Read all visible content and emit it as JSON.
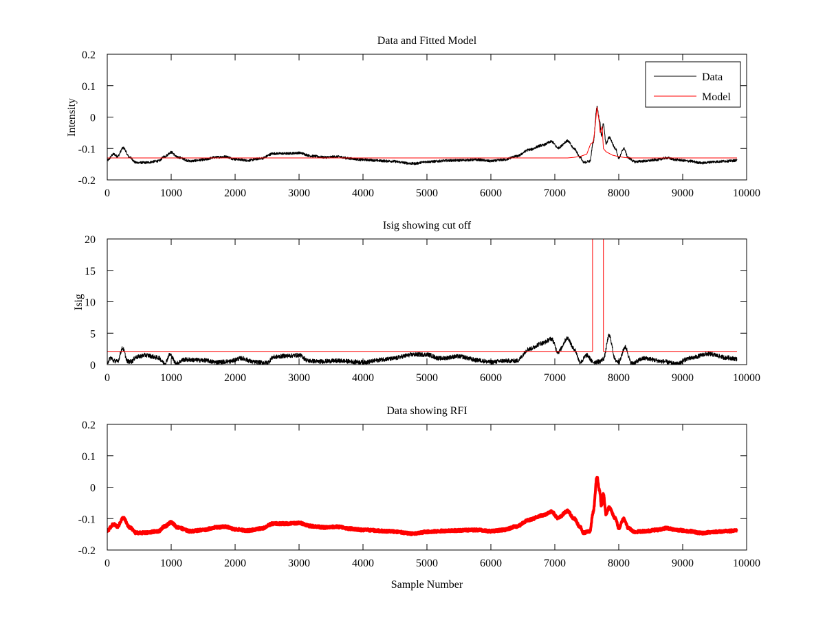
{
  "chart_data": [
    {
      "type": "line",
      "title": "Data and Fitted Model",
      "xlabel": "",
      "ylabel": "Intensity",
      "xlim": [
        0,
        10000
      ],
      "ylim": [
        -0.2,
        0.2
      ],
      "xticks": [
        0,
        1000,
        2000,
        3000,
        4000,
        5000,
        6000,
        7000,
        8000,
        9000,
        10000
      ],
      "xtick_labels": [
        "0",
        "1000",
        "2000",
        "3000",
        "4000",
        "5000",
        "6000",
        "7000",
        "8000",
        "9000",
        "10000"
      ],
      "yticks": [
        -0.2,
        -0.1,
        0,
        0.1,
        0.2
      ],
      "ytick_labels": [
        "-0.2",
        "-0.1",
        "0",
        "0.1",
        "0.2"
      ],
      "grid": false,
      "legend": {
        "placement": "top-right",
        "entries": [
          "Data",
          "Model"
        ]
      },
      "series": [
        {
          "name": "Data",
          "color": "#000000",
          "noise": 0.004,
          "x": [
            0,
            100,
            160,
            250,
            350,
            450,
            600,
            800,
            900,
            1000,
            1100,
            1300,
            1500,
            1700,
            1850,
            2000,
            2200,
            2400,
            2600,
            2800,
            3000,
            3200,
            3400,
            3600,
            3800,
            4000,
            4400,
            4800,
            5000,
            5400,
            5800,
            6000,
            6200,
            6400,
            6600,
            6800,
            6950,
            7050,
            7200,
            7300,
            7400,
            7450,
            7550,
            7600,
            7660,
            7700,
            7730,
            7760,
            7800,
            7850,
            7950,
            8000,
            8080,
            8150,
            8250,
            8400,
            8600,
            8750,
            8900,
            9100,
            9300,
            9500,
            9700,
            9850
          ],
          "y": [
            -0.138,
            -0.118,
            -0.125,
            -0.098,
            -0.128,
            -0.145,
            -0.145,
            -0.14,
            -0.125,
            -0.112,
            -0.128,
            -0.14,
            -0.136,
            -0.128,
            -0.126,
            -0.134,
            -0.138,
            -0.132,
            -0.116,
            -0.116,
            -0.114,
            -0.124,
            -0.128,
            -0.126,
            -0.132,
            -0.136,
            -0.14,
            -0.148,
            -0.142,
            -0.138,
            -0.136,
            -0.14,
            -0.136,
            -0.125,
            -0.104,
            -0.09,
            -0.078,
            -0.098,
            -0.076,
            -0.1,
            -0.128,
            -0.145,
            -0.14,
            -0.08,
            0.032,
            -0.01,
            -0.06,
            -0.02,
            -0.085,
            -0.065,
            -0.1,
            -0.13,
            -0.1,
            -0.13,
            -0.142,
            -0.14,
            -0.136,
            -0.13,
            -0.136,
            -0.14,
            -0.146,
            -0.142,
            -0.14,
            -0.138
          ]
        },
        {
          "name": "Model",
          "color": "#ff0000",
          "noise": 0,
          "x": [
            0,
            7200,
            7300,
            7400,
            7500,
            7560,
            7600,
            7620,
            7660,
            7690,
            7710,
            7740,
            7760,
            7800,
            7900,
            8000,
            8100,
            8200,
            9850
          ],
          "y": [
            -0.13,
            -0.13,
            -0.128,
            -0.125,
            -0.118,
            -0.085,
            -0.08,
            -0.05,
            0.032,
            -0.01,
            -0.05,
            -0.03,
            -0.1,
            -0.11,
            -0.121,
            -0.126,
            -0.129,
            -0.13,
            -0.13
          ]
        }
      ]
    },
    {
      "type": "line",
      "title": "Isig showing cut off",
      "xlabel": "",
      "ylabel": "Isig",
      "xlim": [
        0,
        10000
      ],
      "ylim": [
        0,
        20
      ],
      "xticks": [
        0,
        1000,
        2000,
        3000,
        4000,
        5000,
        6000,
        7000,
        8000,
        9000,
        10000
      ],
      "xtick_labels": [
        "0",
        "1000",
        "2000",
        "3000",
        "4000",
        "5000",
        "6000",
        "7000",
        "8000",
        "9000",
        "10000"
      ],
      "yticks": [
        0,
        5,
        10,
        15,
        20
      ],
      "ytick_labels": [
        "0",
        "5",
        "10",
        "15",
        "20"
      ],
      "grid": false,
      "series": [
        {
          "name": "Isig",
          "color": "#000000",
          "noise": 0.35,
          "x": [
            0,
            60,
            100,
            160,
            240,
            320,
            380,
            450,
            600,
            800,
            900,
            980,
            1080,
            1200,
            1500,
            1700,
            1900,
            2100,
            2300,
            2500,
            2600,
            2800,
            3000,
            3150,
            3300,
            3600,
            4000,
            4400,
            4800,
            5000,
            5200,
            5500,
            5800,
            6000,
            6200,
            6400,
            6600,
            6800,
            6950,
            7050,
            7200,
            7300,
            7400,
            7500,
            7600,
            7700,
            7760,
            7850,
            7950,
            8000,
            8100,
            8200,
            8400,
            8700,
            8900,
            9100,
            9400,
            9700,
            9850
          ],
          "y": [
            0.4,
            1.1,
            0.6,
            0.5,
            2.6,
            0.5,
            0.5,
            1.2,
            1.5,
            1.1,
            0.2,
            1.6,
            0.2,
            0.8,
            0.7,
            0.4,
            0.5,
            1.0,
            0.4,
            0.3,
            1.2,
            1.4,
            1.5,
            0.6,
            0.5,
            0.6,
            0.4,
            0.9,
            1.6,
            1.6,
            1.0,
            1.3,
            0.7,
            0.4,
            0.6,
            0.6,
            2.5,
            3.4,
            4.1,
            2.0,
            4.2,
            2.5,
            0.4,
            1.5,
            0.4,
            0.5,
            0.9,
            4.6,
            0.7,
            0.4,
            2.8,
            0.2,
            1.0,
            0.5,
            0.1,
            1.0,
            1.7,
            1.1,
            0.9
          ]
        },
        {
          "name": "Cutoff",
          "color": "#ff0000",
          "noise": 0,
          "x": [
            0,
            7590,
            7590,
            7760,
            7760,
            9850
          ],
          "y": [
            2.1,
            2.1,
            25,
            25,
            2.1,
            2.1
          ]
        }
      ]
    },
    {
      "type": "scatter",
      "title": "Data showing RFI",
      "xlabel": "Sample Number",
      "ylabel": "",
      "xlim": [
        0,
        10000
      ],
      "ylim": [
        -0.2,
        0.2
      ],
      "xticks": [
        0,
        1000,
        2000,
        3000,
        4000,
        5000,
        6000,
        7000,
        8000,
        9000,
        10000
      ],
      "xtick_labels": [
        "0",
        "1000",
        "2000",
        "3000",
        "4000",
        "5000",
        "6000",
        "7000",
        "8000",
        "9000",
        "10000"
      ],
      "yticks": [
        -0.2,
        -0.1,
        0,
        0.1,
        0.2
      ],
      "ytick_labels": [
        "-0.2",
        "-0.1",
        "0",
        "0.1",
        "0.2"
      ],
      "grid": false,
      "series": [
        {
          "name": "Data",
          "color": "#ff0000",
          "marker": "dot",
          "noise": 0.004,
          "x": [
            0,
            100,
            160,
            250,
            350,
            450,
            600,
            800,
            900,
            1000,
            1100,
            1300,
            1500,
            1700,
            1850,
            2000,
            2200,
            2400,
            2600,
            2800,
            3000,
            3200,
            3400,
            3600,
            3800,
            4000,
            4400,
            4800,
            5000,
            5400,
            5800,
            6000,
            6200,
            6400,
            6600,
            6800,
            6950,
            7050,
            7200,
            7300,
            7400,
            7450,
            7550,
            7600,
            7660,
            7700,
            7730,
            7760,
            7800,
            7850,
            7950,
            8000,
            8080,
            8150,
            8250,
            8400,
            8600,
            8750,
            8900,
            9100,
            9300,
            9500,
            9700,
            9850
          ],
          "y": [
            -0.138,
            -0.118,
            -0.125,
            -0.098,
            -0.128,
            -0.145,
            -0.145,
            -0.14,
            -0.125,
            -0.112,
            -0.128,
            -0.14,
            -0.136,
            -0.128,
            -0.126,
            -0.134,
            -0.138,
            -0.132,
            -0.116,
            -0.116,
            -0.114,
            -0.124,
            -0.128,
            -0.126,
            -0.132,
            -0.136,
            -0.14,
            -0.148,
            -0.142,
            -0.138,
            -0.136,
            -0.14,
            -0.136,
            -0.125,
            -0.104,
            -0.09,
            -0.078,
            -0.098,
            -0.076,
            -0.1,
            -0.128,
            -0.145,
            -0.14,
            -0.08,
            0.032,
            -0.01,
            -0.06,
            -0.02,
            -0.085,
            -0.065,
            -0.1,
            -0.13,
            -0.1,
            -0.13,
            -0.142,
            -0.14,
            -0.136,
            -0.13,
            -0.136,
            -0.14,
            -0.146,
            -0.142,
            -0.14,
            -0.138
          ]
        }
      ]
    }
  ]
}
